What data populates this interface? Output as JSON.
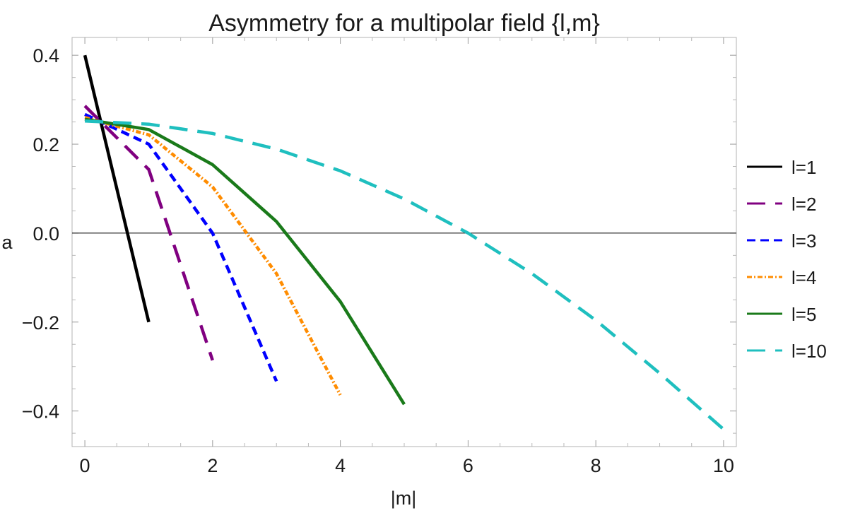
{
  "chart_data": {
    "type": "line",
    "title": "Asymmetry for a multipolar field {l,m}",
    "xlabel": "|m|",
    "ylabel": "a",
    "xlim": [
      -0.2,
      10.2
    ],
    "ylim": [
      -0.48,
      0.44
    ],
    "xticks": [
      0,
      2,
      4,
      6,
      8,
      10
    ],
    "yticks": [
      -0.4,
      -0.2,
      0.0,
      0.2,
      0.4
    ],
    "xtick_labels": [
      "0",
      "2",
      "4",
      "6",
      "8",
      "10"
    ],
    "ytick_labels": [
      "−0.4",
      "−0.2",
      "0.0",
      "0.2",
      "0.4"
    ],
    "grid": false,
    "zero_line": true,
    "legend_position": "right",
    "series": [
      {
        "name": "l=1",
        "color": "#000000",
        "dash": "solid",
        "x": [
          0,
          1
        ],
        "y": [
          0.4,
          -0.2
        ]
      },
      {
        "name": "l=2",
        "color": "#800080",
        "dash": "long-dash",
        "x": [
          0,
          1,
          2
        ],
        "y": [
          0.286,
          0.143,
          -0.286
        ]
      },
      {
        "name": "l=3",
        "color": "#0000ff",
        "dash": "short-dash",
        "x": [
          0,
          1,
          2,
          3
        ],
        "y": [
          0.267,
          0.2,
          0.0,
          -0.333
        ]
      },
      {
        "name": "l=4",
        "color": "#ff8c00",
        "dash": "dot-dash",
        "x": [
          0,
          1,
          2,
          3,
          4
        ],
        "y": [
          0.26,
          0.221,
          0.104,
          -0.091,
          -0.364
        ]
      },
      {
        "name": "l=5",
        "color": "#1a7a1a",
        "dash": "solid",
        "x": [
          0,
          1,
          2,
          3,
          4,
          5
        ],
        "y": [
          0.256,
          0.233,
          0.154,
          0.026,
          -0.154,
          -0.385
        ]
      },
      {
        "name": "l=10",
        "color": "#1fbfbf",
        "dash": "long-dash",
        "x": [
          0,
          1,
          2,
          3,
          4,
          5,
          6,
          7,
          8,
          9,
          10
        ],
        "y": [
          0.252,
          0.245,
          0.224,
          0.189,
          0.14,
          0.077,
          0.0,
          -0.091,
          -0.196,
          -0.315,
          -0.441
        ]
      }
    ]
  }
}
